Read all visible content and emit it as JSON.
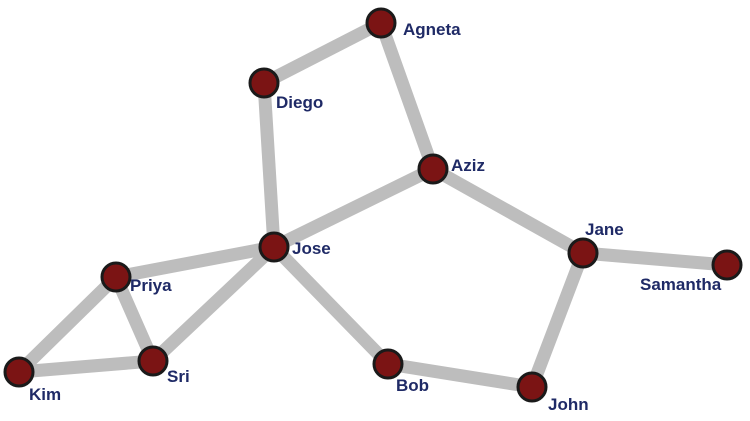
{
  "colors": {
    "edge": "#bdbdbd",
    "node_fill": "#7b1414",
    "node_stroke": "#1a1a1a",
    "label": "#1f2a66",
    "background": "#ffffff"
  },
  "graph": {
    "nodes": [
      {
        "id": "agneta",
        "label": "Agneta"
      },
      {
        "id": "diego",
        "label": "Diego"
      },
      {
        "id": "aziz",
        "label": "Aziz"
      },
      {
        "id": "jose",
        "label": "Jose"
      },
      {
        "id": "jane",
        "label": "Jane"
      },
      {
        "id": "samantha",
        "label": "Samantha"
      },
      {
        "id": "priya",
        "label": "Priya"
      },
      {
        "id": "sri",
        "label": "Sri"
      },
      {
        "id": "kim",
        "label": "Kim"
      },
      {
        "id": "bob",
        "label": "Bob"
      },
      {
        "id": "john",
        "label": "John"
      }
    ],
    "edges": [
      [
        "diego",
        "agneta"
      ],
      [
        "agneta",
        "aziz"
      ],
      [
        "diego",
        "jose"
      ],
      [
        "jose",
        "aziz"
      ],
      [
        "aziz",
        "jane"
      ],
      [
        "jane",
        "samantha"
      ],
      [
        "jane",
        "john"
      ],
      [
        "john",
        "bob"
      ],
      [
        "bob",
        "jose"
      ],
      [
        "jose",
        "priya"
      ],
      [
        "jose",
        "sri"
      ],
      [
        "priya",
        "sri"
      ],
      [
        "priya",
        "kim"
      ],
      [
        "kim",
        "sri"
      ]
    ]
  }
}
